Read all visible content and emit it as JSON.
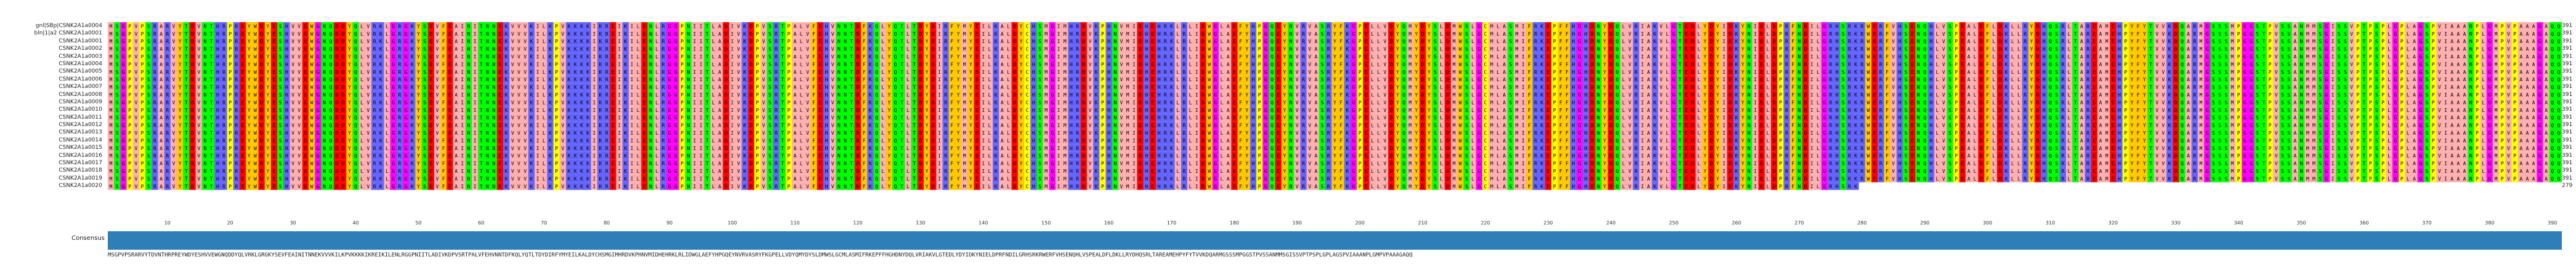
{
  "alignment": {
    "sequence_names": [
      "gnl|SBp|CSNK2A1a0004",
      "bln|1|a2 CSNK2A1a0001",
      "CSNK2A1a0001",
      "CSNK2A1a0002",
      "CSNK2A1a0003",
      "CSNK2A1a0004",
      "CSNK2A1a0005",
      "CSNK2A1a0006",
      "CSNK2A1a0007",
      "CSNK2A1a0008",
      "CSNK2A1a0009",
      "CSNK2A1a0010",
      "CSNK2A1a0011",
      "CSNK2A1a0012",
      "CSNK2A1a0013",
      "CSNK2A1a0014",
      "CSNK2A1a0015",
      "CSNK2A1a0016",
      "CSNK2A1a0017",
      "CSNK2A1a0018",
      "CSNK2A1a0019",
      "CSNK2A1a0020"
    ],
    "end_numbers": [
      "391",
      "391",
      "391",
      "391",
      "391",
      "391",
      "391",
      "391",
      "391",
      "391",
      "391",
      "391",
      "391",
      "391",
      "391",
      "391",
      "391",
      "391",
      "391",
      "391",
      "391",
      "279"
    ],
    "ruler_ticks": [
      "10",
      "20",
      "30",
      "40",
      "50",
      "60",
      "70",
      "80",
      "90",
      "100",
      "110",
      "120",
      "130",
      "140",
      "150",
      "160",
      "170",
      "180",
      "190",
      "200",
      "210",
      "220",
      "230",
      "240",
      "250",
      "260",
      "270",
      "280",
      "290",
      "300",
      "310",
      "320",
      "330",
      "340",
      "350",
      "360",
      "370",
      "380",
      "390"
    ],
    "consensus_label": "Consensus",
    "consensus_sequence": "MSGPVPSRARVYTDVNTHRPREYWDYESHVVEWGNQDDYQLVRKLGRGKYSEVFEAINITNNEKVVVKILKPVKKKKIKREIKILENLRGGPNIITLADIVKDPVSRTPALVFEHVNNTDFKQLYQTLTDYDIRFYMYEILKALDYCHSMGIMHRDVKPHNVMIDHEHRKLRLIDWGLAEFYHPGQEYNVRVASRYFKGPELLVDYQMYDYSLDMWSLGCMLASMIFRKEPFFHGHDNYDQLVRIAKVLGTEDLYDYIDKYNIELDPRFNDILGRHSRKRWERFVHSENQHLVSPEALDFLDKLLRYDHQSRLTAREAMEHPYFYTVVKDQARMGSSSMPGGSTPVSSANMMSGISSVPTPSPLGPLAGSPVIAAANPLGMPVPAAAGAQQ",
    "colors": {
      "A": "#ffafaf",
      "I": "#ffafaf",
      "L": "#ffafaf",
      "M": "#ffafaf",
      "V": "#ffafaf",
      "F": "#ffc800",
      "W": "#ffc800",
      "Y": "#ffc800",
      "K": "#6464ff",
      "R": "#6464ff",
      "H": "#6464ff",
      "D": "#ff0000",
      "E": "#ff0000",
      "S": "#00ff00",
      "T": "#00ff00",
      "N": "#00ff00",
      "Q": "#00ff00",
      "G": "#ff00ff",
      "P": "#ffff00",
      "C": "#ffff00",
      "-": "#ffffff"
    },
    "consensus_bar_color": "#2e7fb8"
  }
}
